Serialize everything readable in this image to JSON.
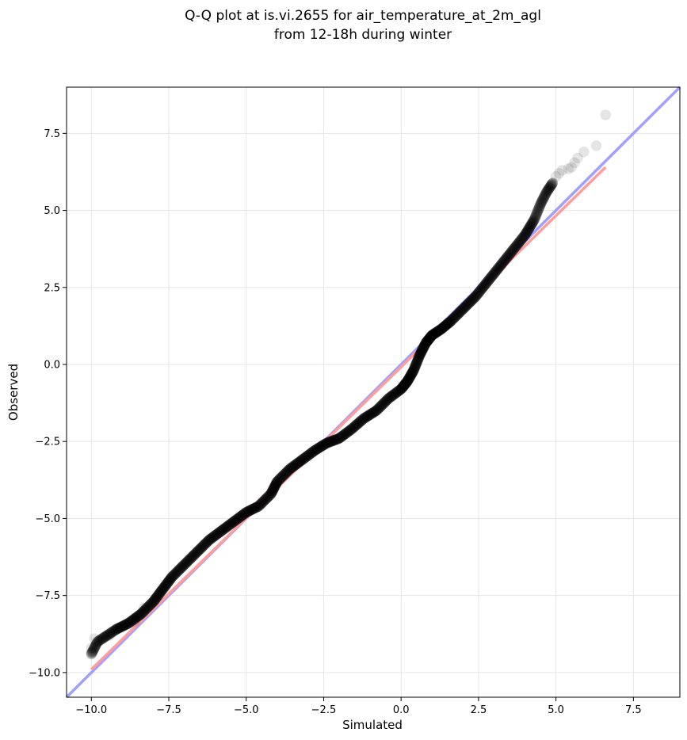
{
  "chart_data": {
    "type": "scatter",
    "title": "Q-Q plot at is.vi.2655 for air_temperature_at_2m_agl",
    "subtitle": "from 12-18h during winter",
    "xlabel": "Simulated",
    "ylabel": "Observed",
    "xlim": [
      -10.8,
      9.0
    ],
    "ylim": [
      -10.8,
      9.0
    ],
    "xticks": [
      -10.0,
      -7.5,
      -5.0,
      -2.5,
      0.0,
      2.5,
      5.0,
      7.5
    ],
    "yticks": [
      -10.0,
      -7.5,
      -5.0,
      -2.5,
      0.0,
      2.5,
      5.0,
      7.5
    ],
    "xtick_labels": [
      "−10.0",
      "−7.5",
      "−5.0",
      "−2.5",
      "0.0",
      "2.5",
      "5.0",
      "7.5"
    ],
    "ytick_labels": [
      "−10.0",
      "−7.5",
      "−5.0",
      "−2.5",
      "0.0",
      "2.5",
      "5.0",
      "7.5"
    ],
    "grid": true,
    "quantile_curve": [
      [
        -10.0,
        -9.4
      ],
      [
        -9.8,
        -9.0
      ],
      [
        -9.5,
        -8.8
      ],
      [
        -9.2,
        -8.6
      ],
      [
        -8.8,
        -8.4
      ],
      [
        -8.4,
        -8.1
      ],
      [
        -8.0,
        -7.7
      ],
      [
        -7.7,
        -7.3
      ],
      [
        -7.4,
        -6.9
      ],
      [
        -7.0,
        -6.5
      ],
      [
        -6.6,
        -6.1
      ],
      [
        -6.2,
        -5.7
      ],
      [
        -5.8,
        -5.4
      ],
      [
        -5.4,
        -5.1
      ],
      [
        -5.0,
        -4.8
      ],
      [
        -4.6,
        -4.6
      ],
      [
        -4.2,
        -4.2
      ],
      [
        -4.0,
        -3.8
      ],
      [
        -3.6,
        -3.4
      ],
      [
        -3.2,
        -3.1
      ],
      [
        -2.8,
        -2.8
      ],
      [
        -2.4,
        -2.55
      ],
      [
        -2.0,
        -2.4
      ],
      [
        -1.6,
        -2.1
      ],
      [
        -1.2,
        -1.75
      ],
      [
        -0.8,
        -1.5
      ],
      [
        -0.4,
        -1.1
      ],
      [
        0.0,
        -0.8
      ],
      [
        0.2,
        -0.55
      ],
      [
        0.4,
        -0.2
      ],
      [
        0.6,
        0.3
      ],
      [
        0.8,
        0.7
      ],
      [
        1.0,
        0.95
      ],
      [
        1.3,
        1.15
      ],
      [
        1.6,
        1.4
      ],
      [
        2.0,
        1.8
      ],
      [
        2.4,
        2.2
      ],
      [
        2.8,
        2.7
      ],
      [
        3.2,
        3.2
      ],
      [
        3.6,
        3.7
      ],
      [
        4.0,
        4.2
      ],
      [
        4.3,
        4.7
      ],
      [
        4.5,
        5.2
      ],
      [
        4.7,
        5.6
      ],
      [
        4.9,
        5.9
      ]
    ],
    "tail_points": [
      [
        -10.0,
        -9.2
      ],
      [
        -10.0,
        -9.35
      ],
      [
        -9.9,
        -8.9
      ],
      [
        -9.4,
        -8.8
      ],
      [
        -8.6,
        -8.35
      ],
      [
        -8.3,
        -7.9
      ],
      [
        5.0,
        6.1
      ],
      [
        5.1,
        6.2
      ],
      [
        5.2,
        6.3
      ],
      [
        5.4,
        6.35
      ],
      [
        5.5,
        6.4
      ],
      [
        5.6,
        6.55
      ],
      [
        5.7,
        6.7
      ],
      [
        5.9,
        6.9
      ],
      [
        6.3,
        7.1
      ],
      [
        6.6,
        8.1
      ]
    ],
    "reference_line": {
      "name": "",
      "color": "#a0a0ff",
      "x": [
        -10.8,
        9.0
      ],
      "y": [
        -10.8,
        9.0
      ]
    },
    "fit_line": {
      "name": "",
      "color": "#ff9c9c",
      "x": [
        -10.0,
        6.6
      ],
      "y": [
        -9.9,
        6.4
      ]
    }
  }
}
